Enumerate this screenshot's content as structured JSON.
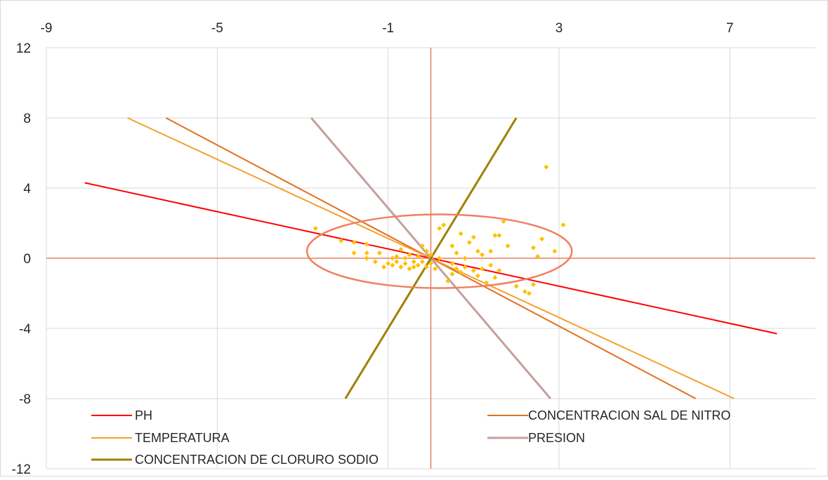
{
  "chart_data": {
    "type": "scatter",
    "title": "",
    "xlabel": "",
    "ylabel": "",
    "xlim": [
      -9,
      9
    ],
    "ylim": [
      -12,
      12
    ],
    "x_ticks": [
      -9,
      -5,
      -1,
      3,
      7
    ],
    "x_tick_labels": [
      "-9",
      "-5",
      "-1",
      "3",
      "7"
    ],
    "y_ticks": [
      12,
      8,
      4,
      0,
      -4,
      -8,
      -12
    ],
    "y_tick_labels": [
      "12",
      "8",
      "4",
      "0",
      "-4",
      "-8",
      "-12"
    ],
    "grid": true,
    "legend_position": "bottom-inside",
    "lines": [
      {
        "name": "PH",
        "color": "#ff0000",
        "width": 2,
        "x": [
          -8.1,
          8.1
        ],
        "y": [
          4.3,
          -4.3
        ]
      },
      {
        "name": "CONCENTRACION SAL DE NITRO",
        "color": "#e07020",
        "width": 2,
        "x": [
          -6.2,
          6.2
        ],
        "y": [
          8.0,
          -8.0
        ]
      },
      {
        "name": "TEMPERATURA",
        "color": "#f5a030",
        "width": 2,
        "x": [
          -7.1,
          7.1
        ],
        "y": [
          8.0,
          -8.0
        ]
      },
      {
        "name": "PRESION",
        "color": "#c4a09c",
        "width": 3,
        "x": [
          -2.8,
          2.8
        ],
        "y": [
          8.0,
          -8.0
        ]
      },
      {
        "name": "CONCENTRACION DE CLORURO SODIO",
        "color": "#a08000",
        "width": 3,
        "x": [
          -2.0,
          2.0
        ],
        "y": [
          -8.0,
          8.0
        ]
      }
    ],
    "ellipse": {
      "cx": 0.2,
      "cy": 0.4,
      "rx": 3.1,
      "ry": 2.1,
      "color": "#f08060"
    },
    "points_color": "#ffc000",
    "points": [
      [
        -2.7,
        1.7
      ],
      [
        -2.1,
        1.0
      ],
      [
        -1.8,
        0.9
      ],
      [
        -1.8,
        0.3
      ],
      [
        -1.5,
        0.8
      ],
      [
        -1.5,
        0.3
      ],
      [
        -1.5,
        0.0
      ],
      [
        -1.3,
        -0.2
      ],
      [
        -1.2,
        0.3
      ],
      [
        -1.1,
        -0.5
      ],
      [
        -1.0,
        -0.3
      ],
      [
        -0.9,
        0.0
      ],
      [
        -0.9,
        -0.4
      ],
      [
        -0.8,
        -0.2
      ],
      [
        -0.8,
        0.1
      ],
      [
        -0.7,
        -0.5
      ],
      [
        -0.7,
        0.5
      ],
      [
        -0.6,
        -0.3
      ],
      [
        -0.6,
        0.0
      ],
      [
        -0.5,
        -0.6
      ],
      [
        -0.5,
        0.2
      ],
      [
        -0.4,
        -0.2
      ],
      [
        -0.4,
        -0.5
      ],
      [
        -0.3,
        0.1
      ],
      [
        -0.3,
        -0.4
      ],
      [
        -0.2,
        0.7
      ],
      [
        -0.2,
        -0.2
      ],
      [
        -0.1,
        0.4
      ],
      [
        -0.1,
        -0.5
      ],
      [
        0.0,
        0.2
      ],
      [
        0.0,
        -0.3
      ],
      [
        0.1,
        -0.6
      ],
      [
        0.2,
        0.0
      ],
      [
        0.2,
        1.7
      ],
      [
        0.3,
        1.9
      ],
      [
        0.4,
        -1.3
      ],
      [
        0.5,
        0.7
      ],
      [
        0.5,
        -0.9
      ],
      [
        0.5,
        -0.3
      ],
      [
        0.6,
        0.3
      ],
      [
        0.6,
        -0.6
      ],
      [
        0.7,
        1.4
      ],
      [
        0.7,
        -0.8
      ],
      [
        0.8,
        0.0
      ],
      [
        0.8,
        -0.5
      ],
      [
        0.9,
        0.9
      ],
      [
        1.0,
        1.2
      ],
      [
        1.0,
        -0.7
      ],
      [
        1.1,
        0.4
      ],
      [
        1.1,
        -1.0
      ],
      [
        1.2,
        0.2
      ],
      [
        1.2,
        -0.6
      ],
      [
        1.3,
        -1.4
      ],
      [
        1.4,
        0.4
      ],
      [
        1.4,
        -0.4
      ],
      [
        1.5,
        1.3
      ],
      [
        1.5,
        -1.1
      ],
      [
        1.6,
        1.3
      ],
      [
        1.6,
        -0.7
      ],
      [
        1.7,
        2.1
      ],
      [
        1.8,
        0.7
      ],
      [
        2.0,
        -1.6
      ],
      [
        2.2,
        -1.9
      ],
      [
        2.3,
        -2.0
      ],
      [
        2.4,
        0.6
      ],
      [
        2.4,
        -1.5
      ],
      [
        2.5,
        0.1
      ],
      [
        2.6,
        1.1
      ],
      [
        2.7,
        5.2
      ],
      [
        2.9,
        0.4
      ],
      [
        3.1,
        1.9
      ]
    ]
  }
}
